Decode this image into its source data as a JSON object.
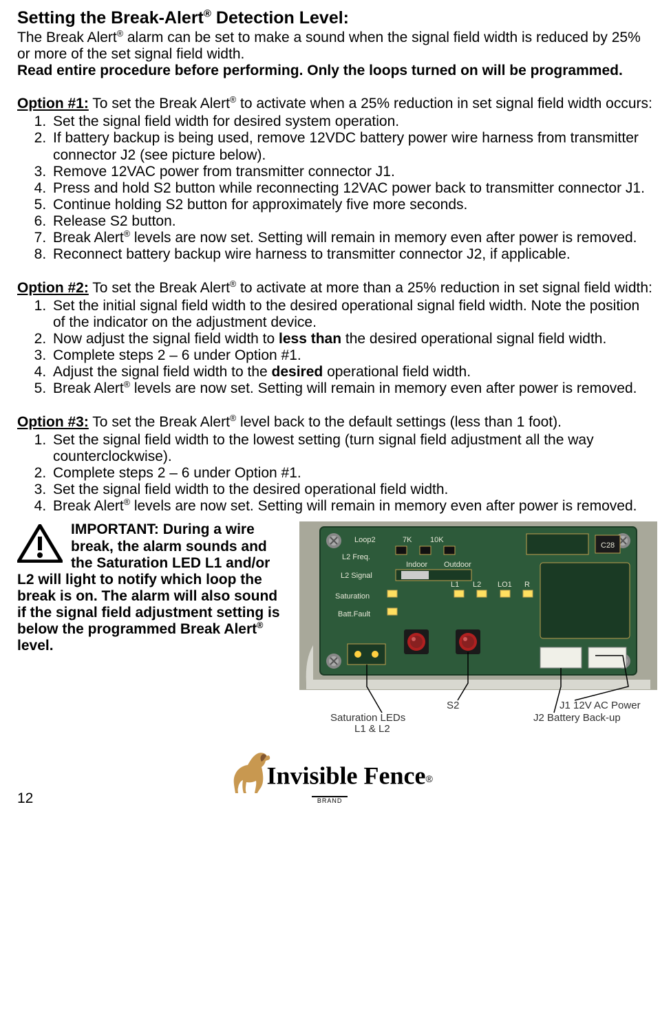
{
  "heading": {
    "pre": "Setting the Break-Alert",
    "post": " Detection Level:"
  },
  "intro": {
    "line1a": "The Break Alert",
    "line1b": " alarm can be set to make a sound when the signal field width is reduced by 25% or more of the set signal field width.",
    "bold": "Read entire procedure before performing. Only the loops turned on will be programmed."
  },
  "opt1": {
    "label": "Option #1:",
    "lead_a": " To set the Break Alert",
    "lead_b": " to activate when a 25% reduction in set signal field width occurs:",
    "items": {
      "1": "Set the signal field width for desired system operation.",
      "2": "If battery backup is being used, remove 12VDC battery power wire harness from transmitter connector J2 (see picture below).",
      "3": "Remove 12VAC power from transmitter connector J1.",
      "4": "Press and hold S2 button while reconnecting 12VAC power back to transmitter connector J1.",
      "5": "Continue holding S2 button for approximately five more seconds.",
      "6": "Release S2 button.",
      "7a": "Break Alert",
      "7b": " levels are now set. Setting will remain in memory even after power is removed.",
      "8": "Reconnect battery backup wire harness to transmitter connector J2, if applicable."
    }
  },
  "opt2": {
    "label": "Option #2:",
    "lead_a": " To set the Break Alert",
    "lead_b": " to activate at more than a 25% reduction in set signal field width:",
    "items": {
      "1": "Set the initial signal field width to the desired operational signal field width. Note the position of the indicator on the adjustment device.",
      "2a": "Now adjust the signal field width to ",
      "2b": "less than",
      "2c": " the desired operational signal field width.",
      "3": "Complete steps 2 – 6 under Option #1.",
      "4a": "Adjust the signal field width to the ",
      "4b": "desired",
      "4c": " operational field width.",
      "5a": "Break Alert",
      "5b": " levels are now set. Setting will remain in memory even after power is removed."
    }
  },
  "opt3": {
    "label": "Option #3:",
    "lead_a": " To set the Break Alert",
    "lead_b": " level back to the default settings (less than 1 foot).",
    "items": {
      "1": "Set the signal field width to the lowest setting (turn signal field adjustment all the way counterclockwise).",
      "2": "Complete steps 2 – 6 under Option #1.",
      "3": "Set the signal field width to the desired operational field width.",
      "4a": "Break Alert",
      "4b": " levels are now set. Setting will remain in memory even after power is removed."
    }
  },
  "warning": {
    "text_a": "IMPORTANT: During a wire break, the alarm sounds and the Saturation LED L1 and/or L2 will light to notify which loop the break is on. The alarm will also sound if the signal field adjustment setting is below the programmed Break Alert",
    "text_b": " level."
  },
  "pcb": {
    "labels": {
      "s2": "S2",
      "sat": "Saturation LEDs",
      "sat2": "L1 & L2",
      "j1": "J1 12V AC Power",
      "j2": "J2 Battery Back-up",
      "loop2": "Loop2",
      "l2freq": "L2 Freq.",
      "l2sig": "L2 Signal",
      "indoor": "Indoor",
      "outdoor": "Outdoor",
      "saturation": "Saturation",
      "battfault": "Batt.Fault",
      "l1": "L1",
      "l2": "L2",
      "lo1": "LO1",
      "k7": "7K",
      "k10": "10K",
      "r": "R"
    },
    "colors": {
      "board": "#2d5a3a",
      "board_border": "#1a3a24",
      "silk": "#e8e8d8",
      "copper": "#c0a050",
      "btn_red": "#b02020",
      "btn_dark": "#882020",
      "conn": "#f0f0e8",
      "screw": "#888888",
      "enclosure": "#d8d8d0",
      "bg": "#a8a89a",
      "text": "#303030"
    }
  },
  "footer": {
    "page": "12",
    "brand": "Invisible Fence",
    "brand_sub": "BRAND"
  }
}
